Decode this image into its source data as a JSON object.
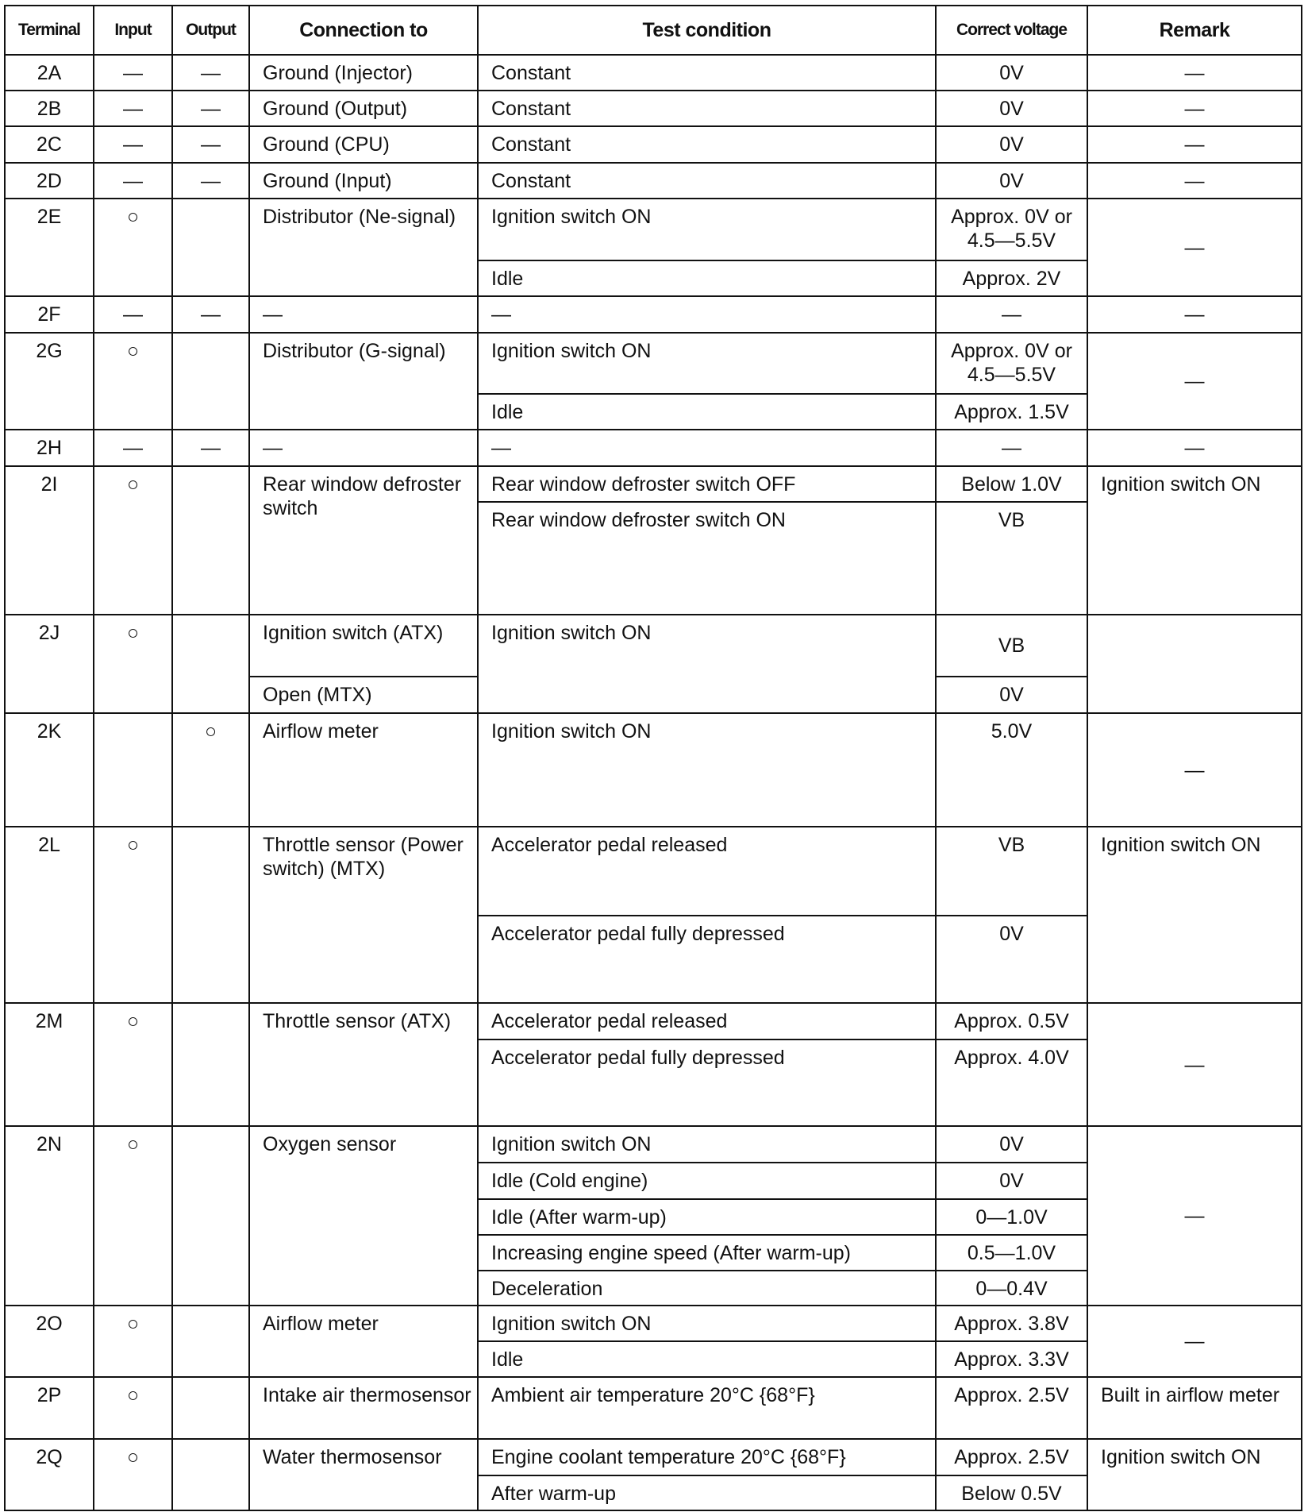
{
  "headers": {
    "terminal": "Terminal",
    "input": "Input",
    "output": "Output",
    "connection": "Connection to",
    "test": "Test condition",
    "voltage": "Correct voltage",
    "remark": "Remark"
  },
  "rows": [
    {
      "terminal": "2A",
      "input": "—",
      "output": "—",
      "connection": [
        "Ground (Injector)"
      ],
      "test": [
        "Constant"
      ],
      "voltage": [
        "0V"
      ],
      "remark": "—"
    },
    {
      "terminal": "2B",
      "input": "—",
      "output": "—",
      "connection": [
        "Ground (Output)"
      ],
      "test": [
        "Constant"
      ],
      "voltage": [
        "0V"
      ],
      "remark": "—"
    },
    {
      "terminal": "2C",
      "input": "—",
      "output": "—",
      "connection": [
        "Ground (CPU)"
      ],
      "test": [
        "Constant"
      ],
      "voltage": [
        "0V"
      ],
      "remark": "—"
    },
    {
      "terminal": "2D",
      "input": "—",
      "output": "—",
      "connection": [
        "Ground (Input)"
      ],
      "test": [
        "Constant"
      ],
      "voltage": [
        "0V"
      ],
      "remark": "—"
    },
    {
      "terminal": "2E",
      "input": "○",
      "output": "",
      "connection": [
        "Distributor (Ne-signal)"
      ],
      "test": [
        "Ignition switch ON",
        "Idle"
      ],
      "voltage": [
        "Approx. 0V or 4.5—5.5V",
        "Approx. 2V"
      ],
      "remark": "—"
    },
    {
      "terminal": "2F",
      "input": "—",
      "output": "—",
      "connection": [
        "—"
      ],
      "test": [
        "—"
      ],
      "voltage": [
        "—"
      ],
      "remark": "—"
    },
    {
      "terminal": "2G",
      "input": "○",
      "output": "",
      "connection": [
        "Distributor (G-signal)"
      ],
      "test": [
        "Ignition switch ON",
        "Idle"
      ],
      "voltage": [
        "Approx. 0V or 4.5—5.5V",
        "Approx. 1.5V"
      ],
      "remark": "—"
    },
    {
      "terminal": "2H",
      "input": "—",
      "output": "—",
      "connection": [
        "—"
      ],
      "test": [
        "—"
      ],
      "voltage": [
        "—"
      ],
      "remark": "—"
    },
    {
      "terminal": "2I",
      "input": "○",
      "output": "",
      "connection": [
        "Rear window defroster switch"
      ],
      "test": [
        "Rear window defroster switch OFF",
        "Rear window defroster switch ON"
      ],
      "voltage": [
        "Below 1.0V",
        "VB"
      ],
      "remark": "Ignition switch ON"
    },
    {
      "terminal": "2J",
      "input": "○",
      "output": "",
      "connection": [
        "Ignition switch (ATX)",
        "Open (MTX)"
      ],
      "test": [
        "Ignition switch ON"
      ],
      "voltage": [
        "VB",
        "0V"
      ],
      "remark": ""
    },
    {
      "terminal": "2K",
      "input": "",
      "output": "○",
      "connection": [
        "Airflow meter"
      ],
      "test": [
        "Ignition switch ON"
      ],
      "voltage": [
        "5.0V"
      ],
      "remark": "—"
    },
    {
      "terminal": "2L",
      "input": "○",
      "output": "",
      "connection": [
        "Throttle sensor (Power switch) (MTX)"
      ],
      "test": [
        "Accelerator pedal released",
        "Accelerator pedal fully depressed"
      ],
      "voltage": [
        "VB",
        "0V"
      ],
      "remark": "Ignition switch ON"
    },
    {
      "terminal": "2M",
      "input": "○",
      "output": "",
      "connection": [
        "Throttle sensor (ATX)"
      ],
      "test": [
        "Accelerator pedal released",
        "Accelerator pedal fully depressed"
      ],
      "voltage": [
        "Approx. 0.5V",
        "Approx. 4.0V"
      ],
      "remark": "—"
    },
    {
      "terminal": "2N",
      "input": "○",
      "output": "",
      "connection": [
        "Oxygen sensor"
      ],
      "test": [
        "Ignition switch ON",
        "Idle (Cold engine)",
        "Idle (After warm-up)",
        "Increasing engine speed (After warm-up)",
        "Deceleration"
      ],
      "voltage": [
        "0V",
        "0V",
        "0—1.0V",
        "0.5—1.0V",
        "0—0.4V"
      ],
      "remark": "—"
    },
    {
      "terminal": "2O",
      "input": "○",
      "output": "",
      "connection": [
        "Airflow meter"
      ],
      "test": [
        "Ignition switch ON",
        "Idle"
      ],
      "voltage": [
        "Approx. 3.8V",
        "Approx. 3.3V"
      ],
      "remark": "—"
    },
    {
      "terminal": "2P",
      "input": "○",
      "output": "",
      "connection": [
        "Intake air thermosensor"
      ],
      "test": [
        "Ambient air temperature 20°C {68°F}"
      ],
      "voltage": [
        "Approx. 2.5V"
      ],
      "remark": "Built in airflow meter"
    },
    {
      "terminal": "2Q",
      "input": "○",
      "output": "",
      "connection": [
        "Water thermosensor"
      ],
      "test": [
        "Engine coolant temperature 20°C {68°F}",
        "After warm-up"
      ],
      "voltage": [
        "Approx. 2.5V",
        "Below 0.5V"
      ],
      "remark": "Ignition switch ON"
    }
  ]
}
